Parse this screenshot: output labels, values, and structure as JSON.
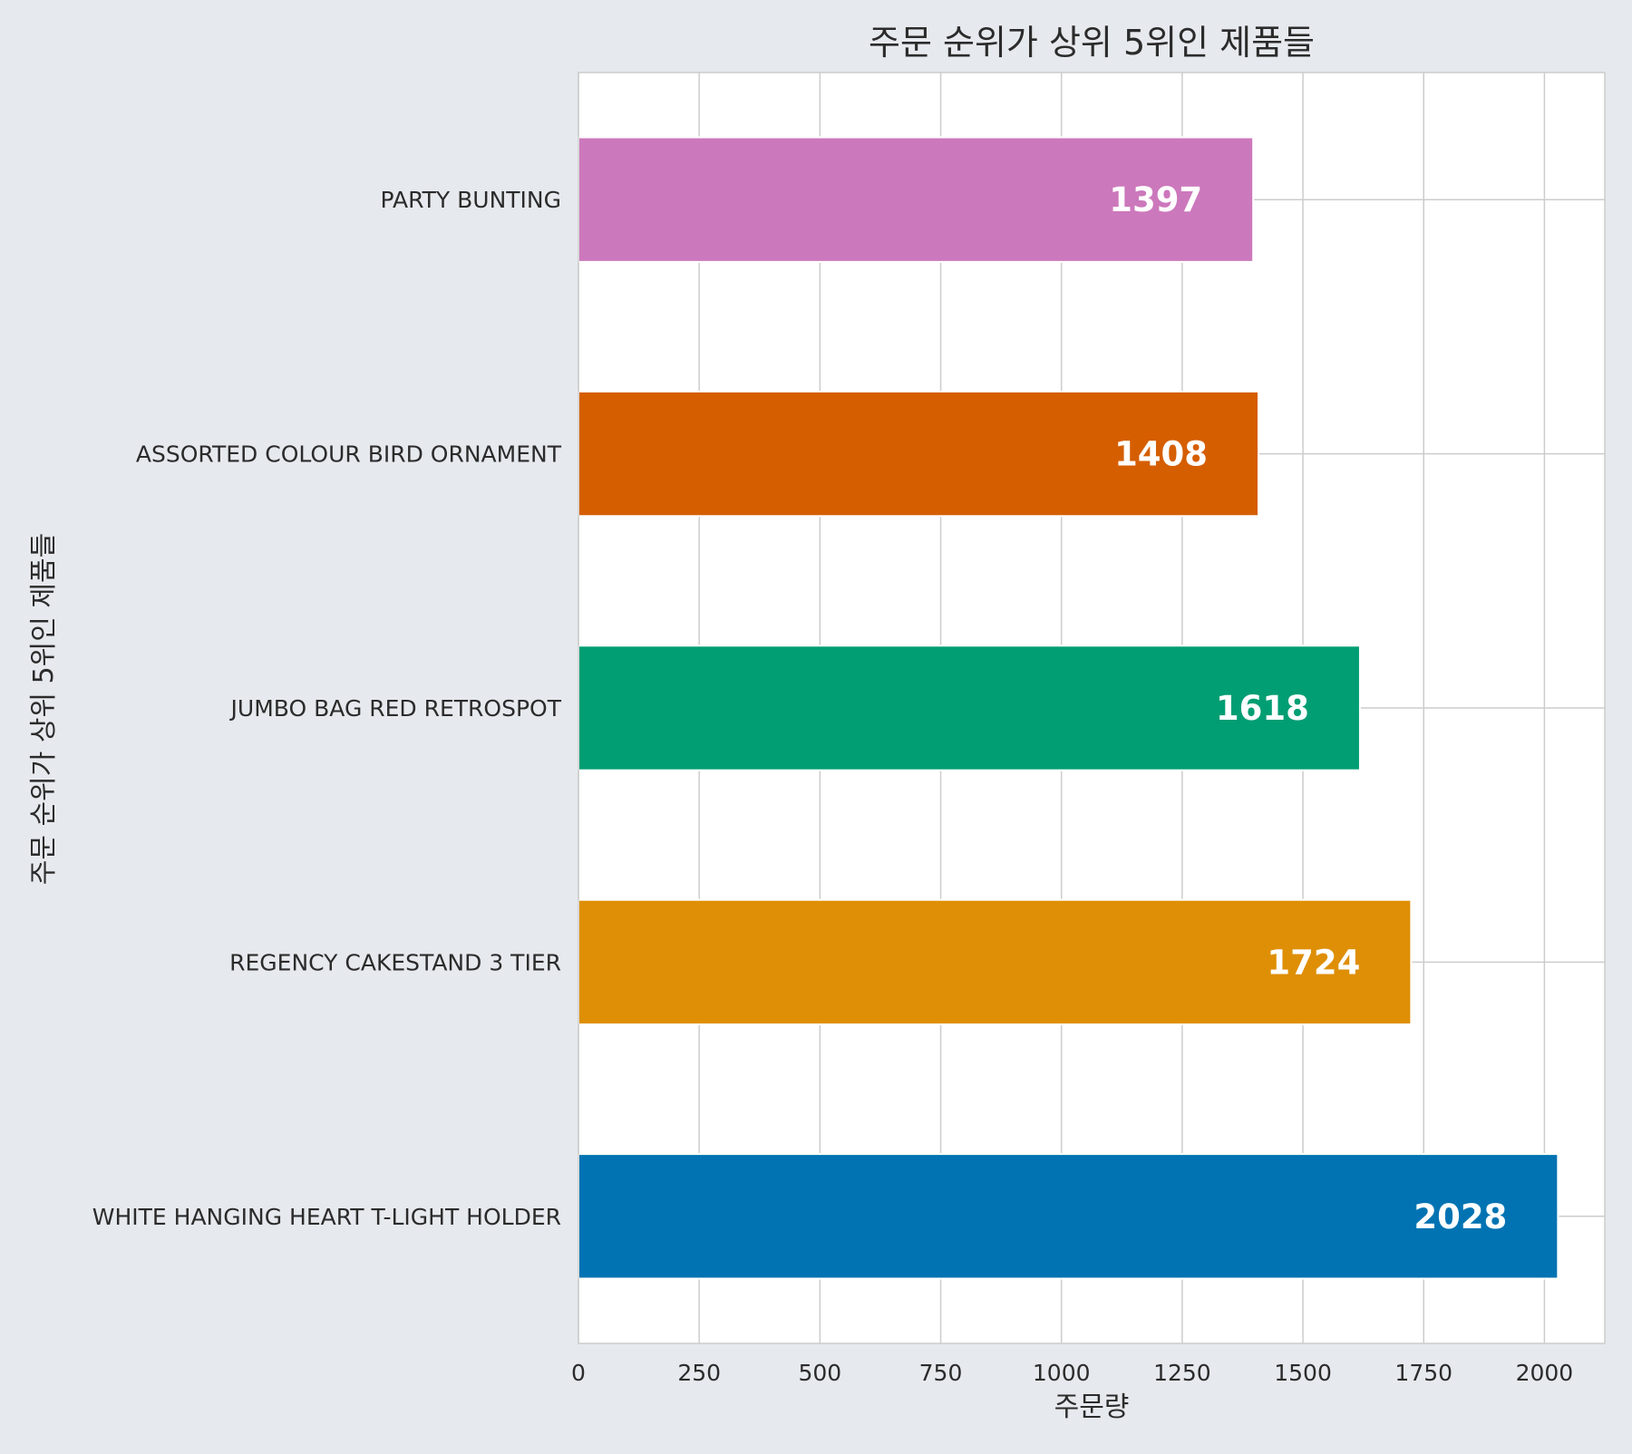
{
  "chart_data": {
    "type": "bar",
    "orientation": "horizontal",
    "title": "주문 순위가 상위 5위인 제품들",
    "xlabel": "주문량",
    "ylabel": "주문 순위가 상위 5위인 제품들",
    "xlim": [
      0,
      2125
    ],
    "xticks": [
      0,
      250,
      500,
      750,
      1000,
      1250,
      1500,
      1750,
      2000
    ],
    "grid": true,
    "categories": [
      "PARTY BUNTING",
      "ASSORTED COLOUR BIRD ORNAMENT",
      "JUMBO BAG RED RETROSPOT",
      "REGENCY CAKESTAND 3 TIER",
      "WHITE HANGING HEART T-LIGHT HOLDER"
    ],
    "values": [
      1397,
      1408,
      1618,
      1724,
      2028
    ],
    "data_labels": [
      "1397",
      "1408",
      "1618",
      "1724",
      "2028"
    ],
    "colors": [
      "#cc78bc",
      "#d55e00",
      "#029e73",
      "#de8f05",
      "#0173b2"
    ],
    "style": {
      "background": "#e6e9ed",
      "plot_background": "#ffffff",
      "grid_color": "#cccccc",
      "frame_color": "#cccccc",
      "label_color": "#ffffff",
      "text_color": "#2b2b2b"
    }
  }
}
